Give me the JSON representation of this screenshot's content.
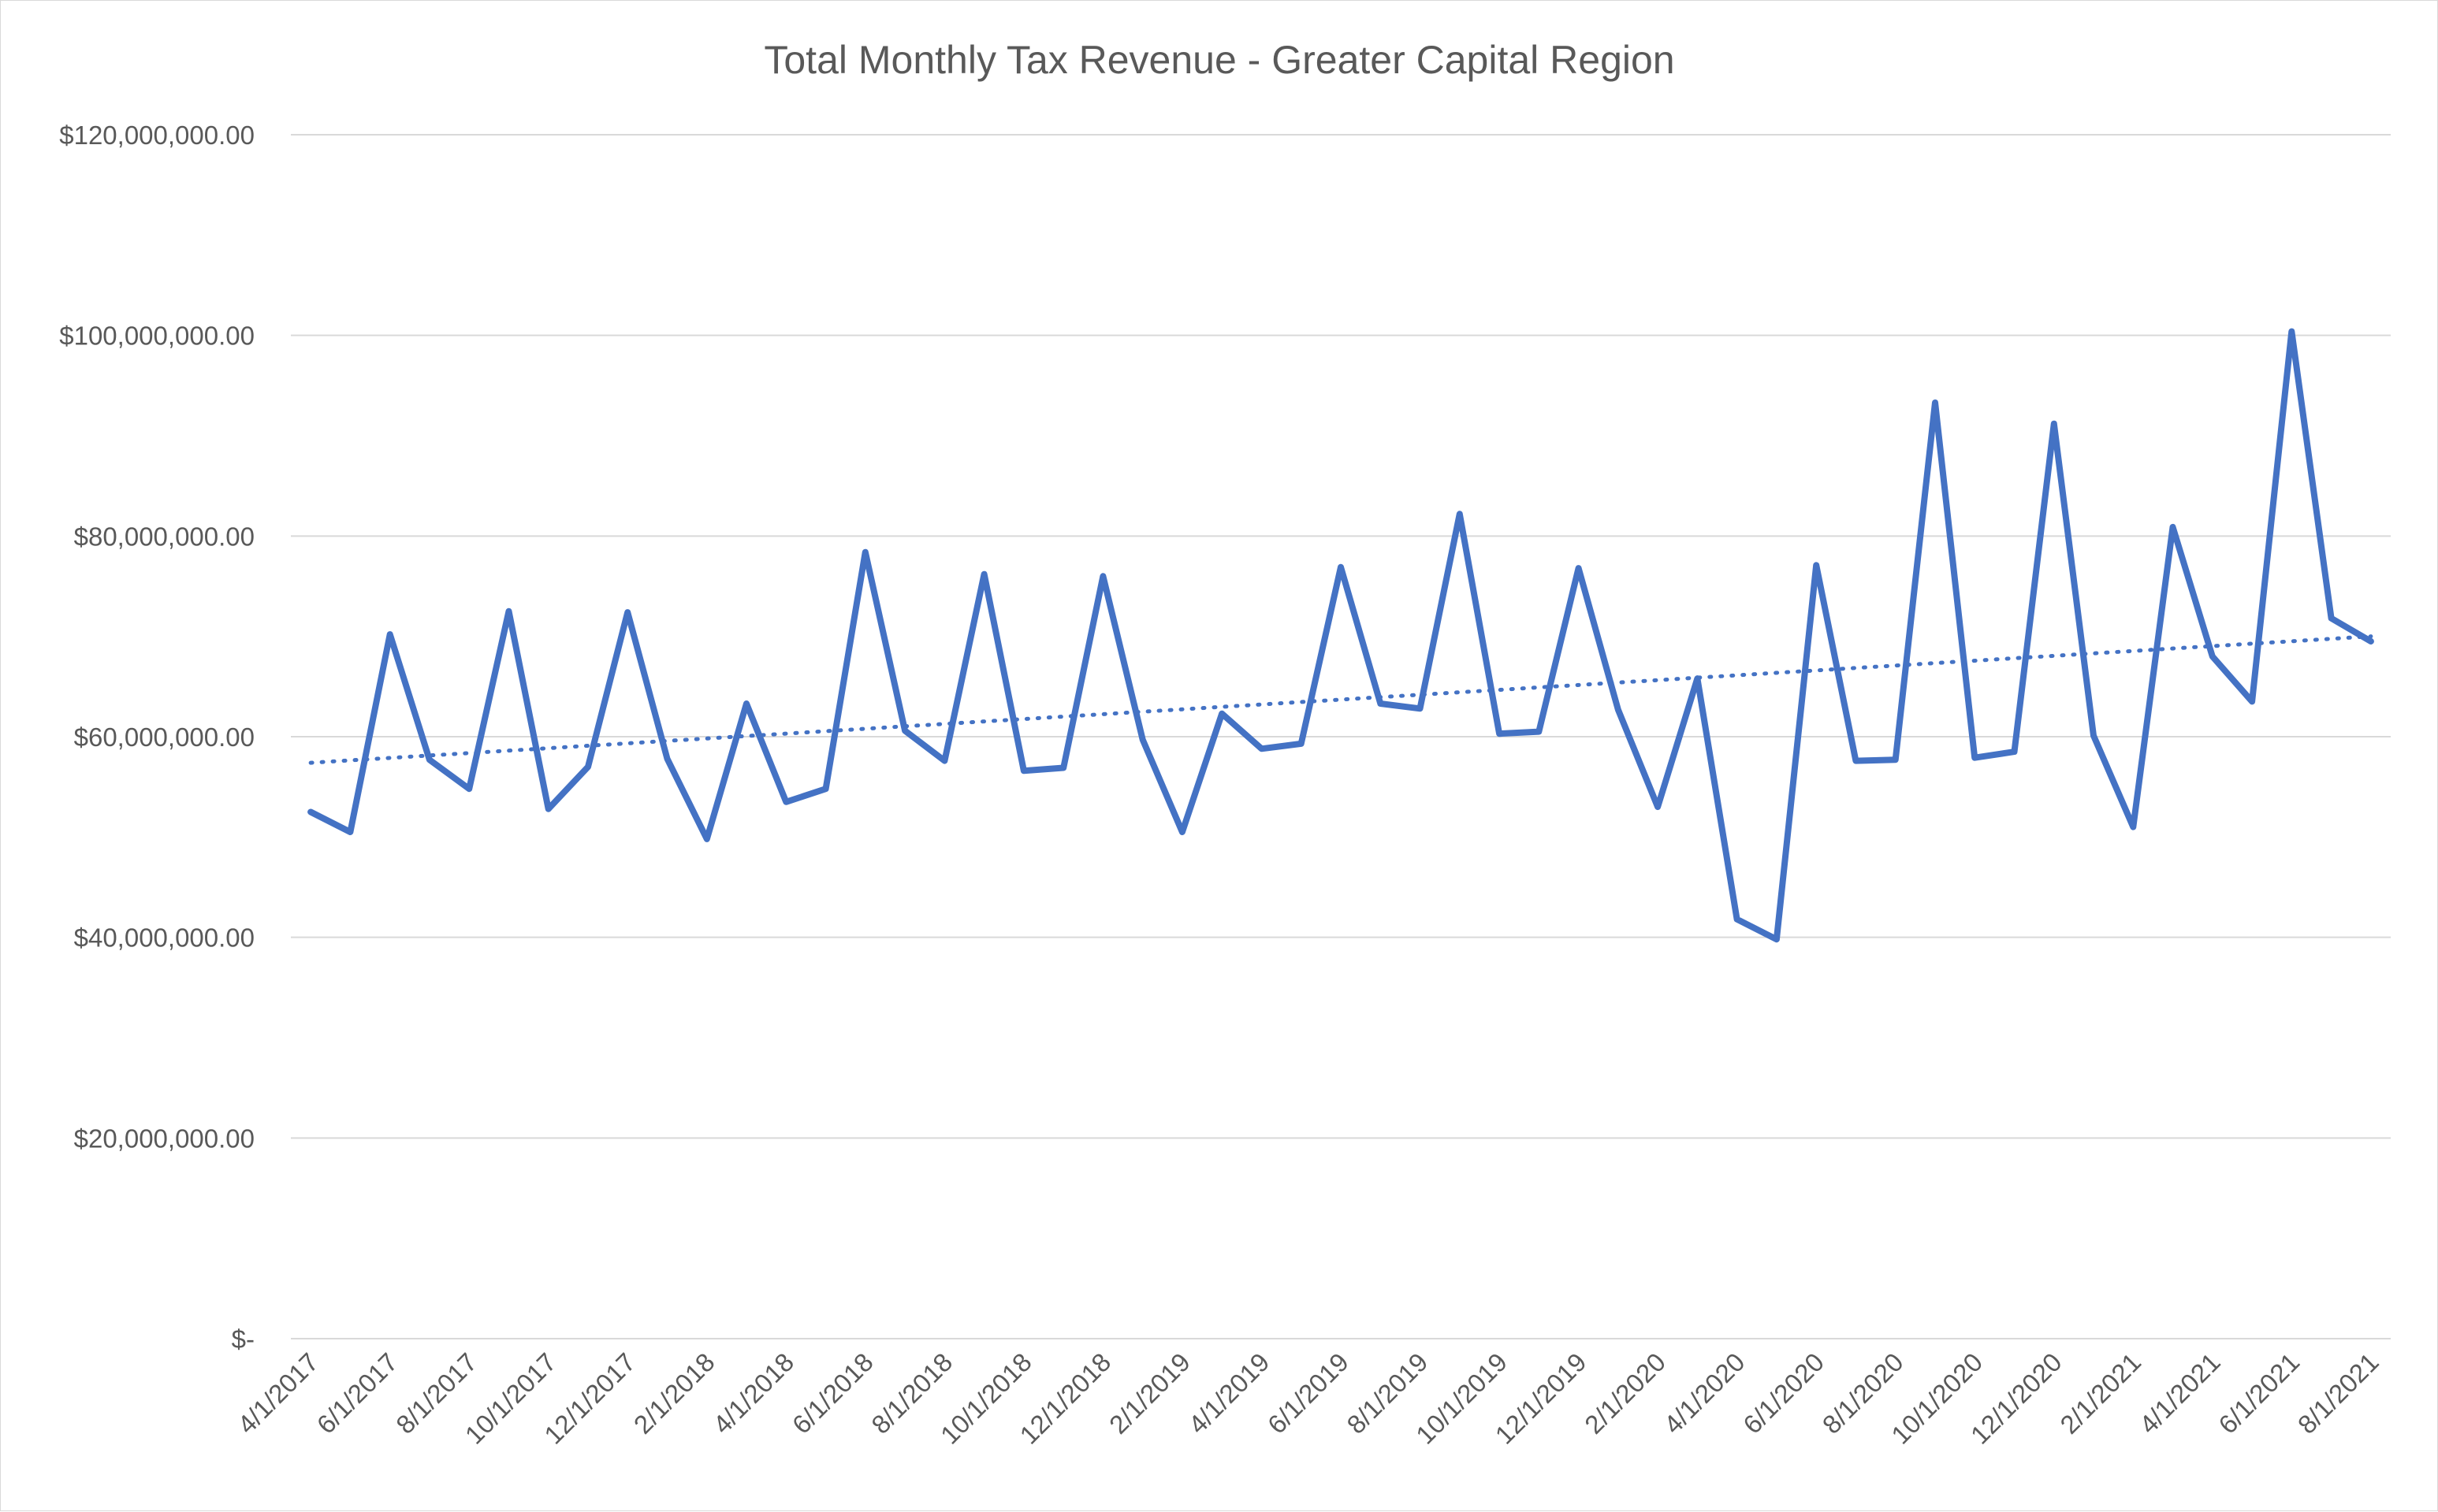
{
  "chart_data": {
    "type": "line",
    "title": "Total Monthly Tax Revenue - Greater Capital Region",
    "xlabel": "",
    "ylabel": "",
    "ylim": [
      0,
      120000000
    ],
    "grid": true,
    "legend": "none",
    "colors": {
      "series": "#4472c4",
      "grid": "#d9d9d9",
      "text": "#595959"
    },
    "y_ticks": [
      0,
      20000000,
      40000000,
      60000000,
      80000000,
      100000000,
      120000000
    ],
    "y_tick_labels": [
      "$-",
      "$20,000,000.00",
      "$40,000,000.00",
      "$60,000,000.00",
      "$80,000,000.00",
      "$100,000,000.00",
      "$120,000,000.00"
    ],
    "x": [
      "4/1/2017",
      "5/1/2017",
      "6/1/2017",
      "7/1/2017",
      "8/1/2017",
      "9/1/2017",
      "10/1/2017",
      "11/1/2017",
      "12/1/2017",
      "1/1/2018",
      "2/1/2018",
      "3/1/2018",
      "4/1/2018",
      "5/1/2018",
      "6/1/2018",
      "7/1/2018",
      "8/1/2018",
      "9/1/2018",
      "10/1/2018",
      "11/1/2018",
      "12/1/2018",
      "1/1/2019",
      "2/1/2019",
      "3/1/2019",
      "4/1/2019",
      "5/1/2019",
      "6/1/2019",
      "7/1/2019",
      "8/1/2019",
      "9/1/2019",
      "10/1/2019",
      "11/1/2019",
      "12/1/2019",
      "1/1/2020",
      "2/1/2020",
      "3/1/2020",
      "4/1/2020",
      "5/1/2020",
      "6/1/2020",
      "7/1/2020",
      "8/1/2020",
      "9/1/2020",
      "10/1/2020",
      "11/1/2020",
      "12/1/2020",
      "1/1/2021",
      "2/1/2021",
      "3/1/2021",
      "4/1/2021",
      "5/1/2021",
      "6/1/2021",
      "7/1/2021",
      "8/1/2021"
    ],
    "x_tick_labels": [
      "4/1/2017",
      "6/1/2017",
      "8/1/2017",
      "10/1/2017",
      "12/1/2017",
      "2/1/2018",
      "4/1/2018",
      "6/1/2018",
      "8/1/2018",
      "10/1/2018",
      "12/1/2018",
      "2/1/2019",
      "4/1/2019",
      "6/1/2019",
      "8/1/2019",
      "10/1/2019",
      "12/1/2019",
      "2/1/2020",
      "4/1/2020",
      "6/1/2020",
      "8/1/2020",
      "10/1/2020",
      "12/1/2020",
      "2/1/2021",
      "4/1/2021",
      "6/1/2021",
      "8/1/2021"
    ],
    "series": [
      {
        "values": [
          52500000,
          50500000,
          70200000,
          57700000,
          54800000,
          72500000,
          52800000,
          57000000,
          72400000,
          57800000,
          49800000,
          63300000,
          53500000,
          54800000,
          78400000,
          60600000,
          57600000,
          76200000,
          56600000,
          56900000,
          76000000,
          59700000,
          50500000,
          62300000,
          58800000,
          59300000,
          76900000,
          63300000,
          62800000,
          82200000,
          60300000,
          60500000,
          76800000,
          62700000,
          53000000,
          65800000,
          41800000,
          39800000,
          77100000,
          57600000,
          57700000,
          93300000,
          57900000,
          58500000,
          91200000,
          60100000,
          51000000,
          80900000,
          68000000,
          63500000,
          100400000,
          71800000,
          69500000
        ]
      }
    ],
    "trendline": {
      "type": "linear",
      "start": 57400000,
      "end": 70000000
    }
  }
}
